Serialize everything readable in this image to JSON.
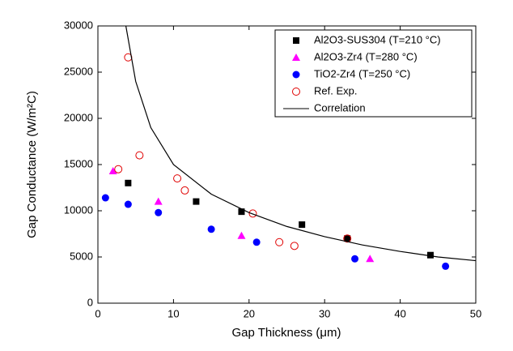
{
  "chart_data": {
    "type": "scatter",
    "xlabel": "Gap Thickness (μm)",
    "ylabel": "Gap Conductance (W/m²C)",
    "xlim": [
      0,
      50
    ],
    "xticks": [
      0,
      10,
      20,
      30,
      40,
      50
    ],
    "ylim": [
      0,
      30000
    ],
    "yticks": [
      0,
      5000,
      10000,
      15000,
      20000,
      25000,
      30000
    ],
    "legend": "upper right",
    "series": [
      {
        "name": "Al2O3-SUS304 (T=210 °C)",
        "marker": "square",
        "color": "#000000",
        "x": [
          4,
          13,
          19,
          27,
          33,
          44
        ],
        "values": [
          13000,
          11000,
          9900,
          8500,
          7000,
          5200
        ]
      },
      {
        "name": "Al2O3-Zr4 (T=280 °C)",
        "marker": "triangle",
        "color": "#ff00ff",
        "x": [
          2,
          8,
          19,
          36
        ],
        "values": [
          14300,
          11000,
          7300,
          4800
        ]
      },
      {
        "name": "TiO2-Zr4 (T=250 °C)",
        "marker": "circle",
        "color": "#0000ff",
        "x": [
          1,
          4,
          8,
          15,
          21,
          34,
          46
        ],
        "values": [
          11400,
          10700,
          9800,
          8000,
          6600,
          4800,
          4000
        ]
      },
      {
        "name": "Ref. Exp.",
        "marker": "open-circle",
        "color": "#e00000",
        "x": [
          4,
          2.7,
          5.5,
          10.5,
          11.5,
          20.5,
          24,
          26,
          33
        ],
        "values": [
          26600,
          14500,
          16000,
          13500,
          12200,
          9700,
          6600,
          6200,
          7000
        ]
      },
      {
        "name": "Correlation",
        "marker": "line",
        "color": "#000000",
        "x": [
          3.7,
          5,
          7,
          10,
          15,
          20,
          25,
          30,
          35,
          40,
          45,
          50
        ],
        "values": [
          30000,
          24000,
          19000,
          15000,
          11800,
          9800,
          8300,
          7200,
          6300,
          5600,
          5000,
          4600
        ]
      }
    ]
  }
}
